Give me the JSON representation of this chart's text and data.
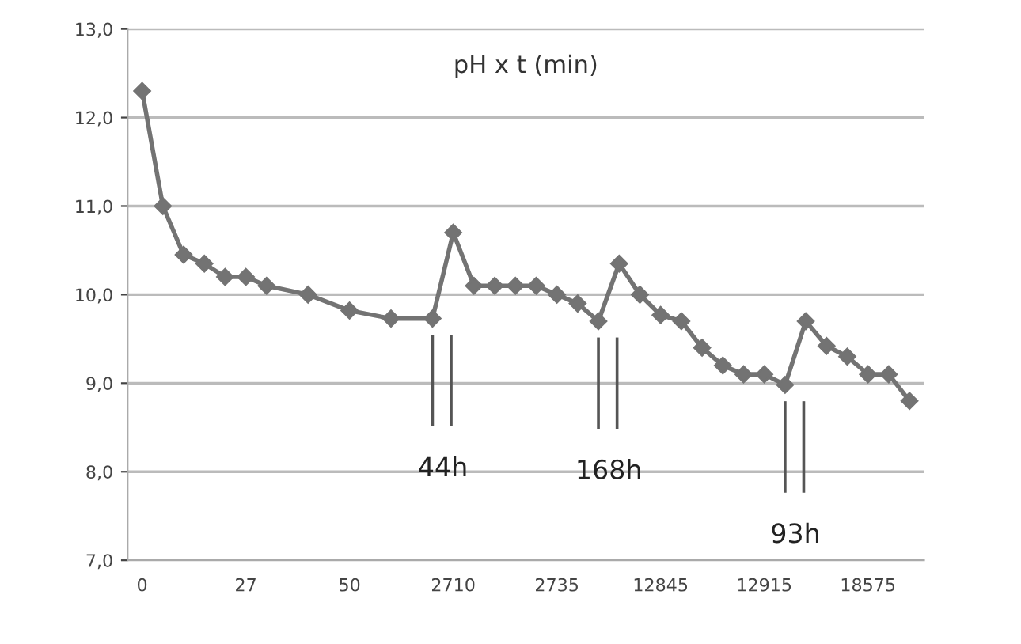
{
  "chart_data": {
    "type": "line",
    "title": "pH x t (min)",
    "categories": [
      "0",
      null,
      null,
      null,
      null,
      "27",
      null,
      null,
      null,
      null,
      "50",
      null,
      null,
      null,
      null,
      "2710",
      null,
      null,
      null,
      null,
      "2735",
      null,
      null,
      null,
      null,
      "12845",
      null,
      null,
      null,
      null,
      "12915",
      null,
      null,
      null,
      null,
      "18575",
      null,
      null
    ],
    "series": [
      {
        "color": "#737373",
        "values": [
          12.3,
          11.0,
          10.45,
          10.35,
          10.2,
          10.2,
          10.1,
          null,
          10.0,
          null,
          9.82,
          null,
          9.73,
          null,
          9.73,
          10.7,
          10.1,
          10.1,
          10.1,
          10.1,
          10.0,
          9.9,
          9.7,
          10.35,
          10.0,
          9.77,
          9.7,
          9.4,
          9.2,
          9.1,
          9.1,
          8.98,
          9.7,
          9.42,
          9.3,
          9.1,
          9.1,
          8.8
        ]
      }
    ],
    "ylim": [
      7.0,
      13.0
    ],
    "yticks": [
      {
        "value": 7,
        "label": "7,0"
      },
      {
        "value": 8,
        "label": "8,0"
      },
      {
        "value": 9,
        "label": "9,0"
      },
      {
        "value": 10,
        "label": "10,0"
      },
      {
        "value": 11,
        "label": "11,0"
      },
      {
        "value": 12,
        "label": "12,0"
      },
      {
        "value": 13,
        "label": "13,0"
      }
    ],
    "grid": "y",
    "marker": "diamond",
    "line_style": "solid",
    "legend": false,
    "annotations": [
      "44h",
      "168h",
      "93h"
    ]
  }
}
